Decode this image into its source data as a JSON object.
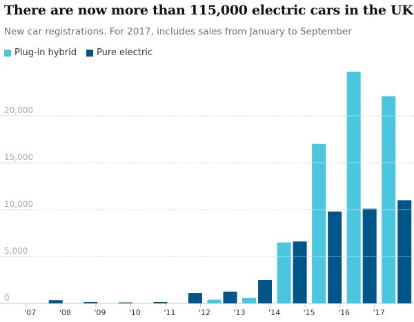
{
  "chart_data": {
    "type": "bar",
    "title": "There are now more than 115,000 electric cars in the UK",
    "subtitle": "New car registrations. For 2017, includes sales from January to September",
    "xlabel": "",
    "ylabel": "",
    "ylim": [
      0,
      25000
    ],
    "yticks": [
      {
        "value": 0,
        "label": "0"
      },
      {
        "value": 5000,
        "label": "5,000"
      },
      {
        "value": 10000,
        "label": "10,000"
      },
      {
        "value": 15000,
        "label": "15,000"
      },
      {
        "value": 20000,
        "label": "20,000"
      }
    ],
    "categories": [
      "'07",
      "'08",
      "'09",
      "'10",
      "'11",
      "'12",
      "'13",
      "'14",
      "'15",
      "'16",
      "'17"
    ],
    "series": [
      {
        "name": "Plug-in hybrid",
        "color": "#4bc6df",
        "values": [
          0,
          0,
          0,
          0,
          0,
          400,
          600,
          6500,
          17000,
          24700,
          22100
        ]
      },
      {
        "name": "Pure electric",
        "color": "#005689",
        "values": [
          350,
          150,
          100,
          150,
          1100,
          1250,
          2500,
          6600,
          9800,
          10100,
          11000
        ]
      }
    ],
    "legend_position": "top-left",
    "grid": true
  },
  "colors": {
    "hybrid": "#4bc6df",
    "electric": "#005689",
    "gridline": "#dcdcdc",
    "axis": "#c8c8c8"
  }
}
